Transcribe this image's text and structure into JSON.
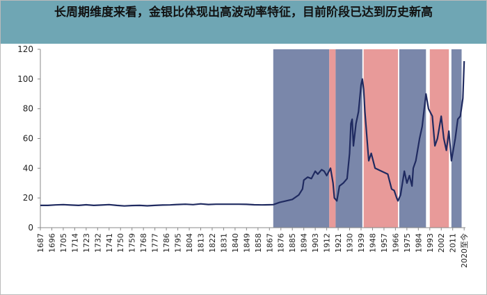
{
  "chart_data": {
    "type": "line",
    "title": "长周期维度来看，金银比体现出高波动率特征，目前阶段已达到历史新高",
    "xlim": [
      1687,
      2021
    ],
    "ylim": [
      0,
      120
    ],
    "yticks": [
      0,
      20,
      40,
      60,
      80,
      100,
      120
    ],
    "xticks": [
      1687,
      1696,
      1705,
      1714,
      1723,
      1732,
      1741,
      1750,
      1759,
      1768,
      1777,
      1786,
      1795,
      1804,
      1813,
      1822,
      1831,
      1840,
      1849,
      1858,
      1867,
      1876,
      1885,
      1894,
      1903,
      1912,
      1921,
      1930,
      1939,
      1948,
      1957,
      1966,
      1975,
      1984,
      1993,
      2002,
      2011,
      {
        "value": 2020,
        "label": "2020至今"
      }
    ],
    "bands": [
      {
        "start": 1870,
        "end": 1914,
        "color": "#7a87aa"
      },
      {
        "start": 1914,
        "end": 1919,
        "color": "#e89a99"
      },
      {
        "start": 1919,
        "end": 1940,
        "color": "#7a87aa"
      },
      {
        "start": 1941,
        "end": 1968,
        "color": "#e89a99"
      },
      {
        "start": 1969,
        "end": 1990,
        "color": "#7a87aa"
      },
      {
        "start": 1993,
        "end": 2008,
        "color": "#e89a99"
      },
      {
        "start": 2010,
        "end": 2018,
        "color": "#7a87aa"
      }
    ],
    "series": [
      {
        "color": "#1f2a60",
        "x": [
          1687,
          1693,
          1699,
          1705,
          1711,
          1717,
          1723,
          1729,
          1735,
          1741,
          1747,
          1753,
          1759,
          1765,
          1771,
          1777,
          1783,
          1789,
          1795,
          1801,
          1807,
          1813,
          1819,
          1825,
          1831,
          1837,
          1843,
          1849,
          1855,
          1861,
          1867,
          1870,
          1875,
          1880,
          1885,
          1890,
          1893,
          1894,
          1897,
          1900,
          1903,
          1905,
          1908,
          1910,
          1912,
          1915,
          1917,
          1918,
          1920,
          1922,
          1925,
          1928,
          1930,
          1931,
          1932,
          1933,
          1935,
          1937,
          1939,
          1940,
          1941,
          1942,
          1945,
          1947,
          1950,
          1955,
          1960,
          1963,
          1965,
          1967,
          1968,
          1970,
          1973,
          1975,
          1977,
          1979,
          1980,
          1982,
          1985,
          1987,
          1990,
          1992,
          1995,
          1997,
          1999,
          2001,
          2002,
          2004,
          2006,
          2008,
          2010,
          2011,
          2013,
          2015,
          2017,
          2019,
          2020
        ],
        "values": [
          15,
          15,
          15.3,
          15.5,
          15.2,
          15,
          15.4,
          15,
          15.2,
          15.5,
          15,
          14.6,
          14.9,
          15,
          14.7,
          15,
          15.2,
          15.3,
          15.6,
          15.8,
          15.5,
          16,
          15.6,
          15.8,
          15.8,
          15.8,
          15.8,
          15.7,
          15.4,
          15.3,
          15.4,
          15.5,
          17,
          18,
          19,
          22,
          26,
          32,
          34,
          33,
          38,
          36,
          39,
          38,
          35,
          40,
          30,
          20,
          18,
          28,
          30,
          33,
          50,
          70,
          73,
          55,
          70,
          78,
          96,
          100,
          93,
          78,
          45,
          50,
          40,
          38,
          36,
          26,
          25,
          20,
          18,
          22,
          38,
          30,
          35,
          28,
          40,
          45,
          60,
          68,
          90,
          80,
          75,
          55,
          60,
          70,
          75,
          60,
          52,
          65,
          45,
          50,
          60,
          73,
          75,
          87,
          112
        ]
      }
    ]
  }
}
